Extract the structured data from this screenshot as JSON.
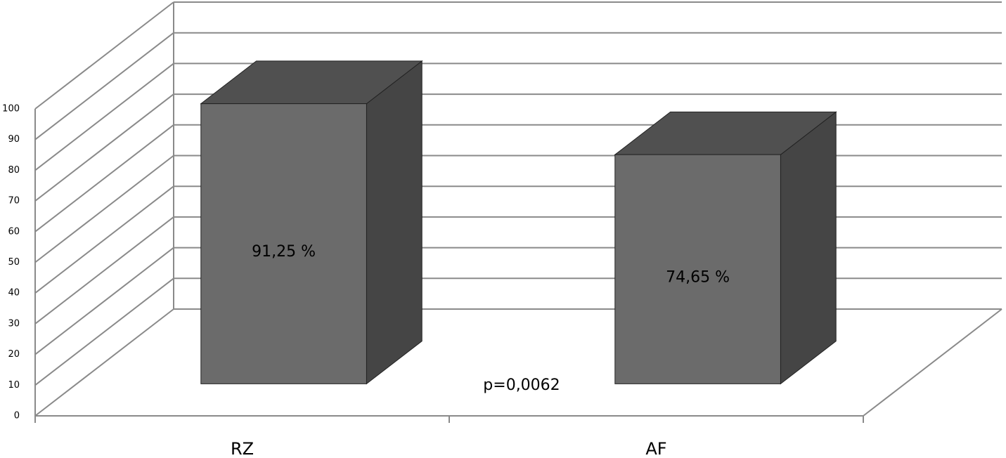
{
  "chart_data": {
    "type": "bar3d",
    "categories": [
      "RZ",
      "AF"
    ],
    "values": [
      91.25,
      74.65
    ],
    "value_labels": [
      "91,25 %",
      "74,65 %"
    ],
    "annotation": "p=0,0062",
    "ylim": [
      0,
      100
    ],
    "yticks": [
      0,
      10,
      20,
      30,
      40,
      50,
      60,
      70,
      80,
      90,
      100
    ],
    "grid": true,
    "colors": {
      "front": "#6b6b6b",
      "top": "#505050",
      "side": "#454545"
    }
  }
}
